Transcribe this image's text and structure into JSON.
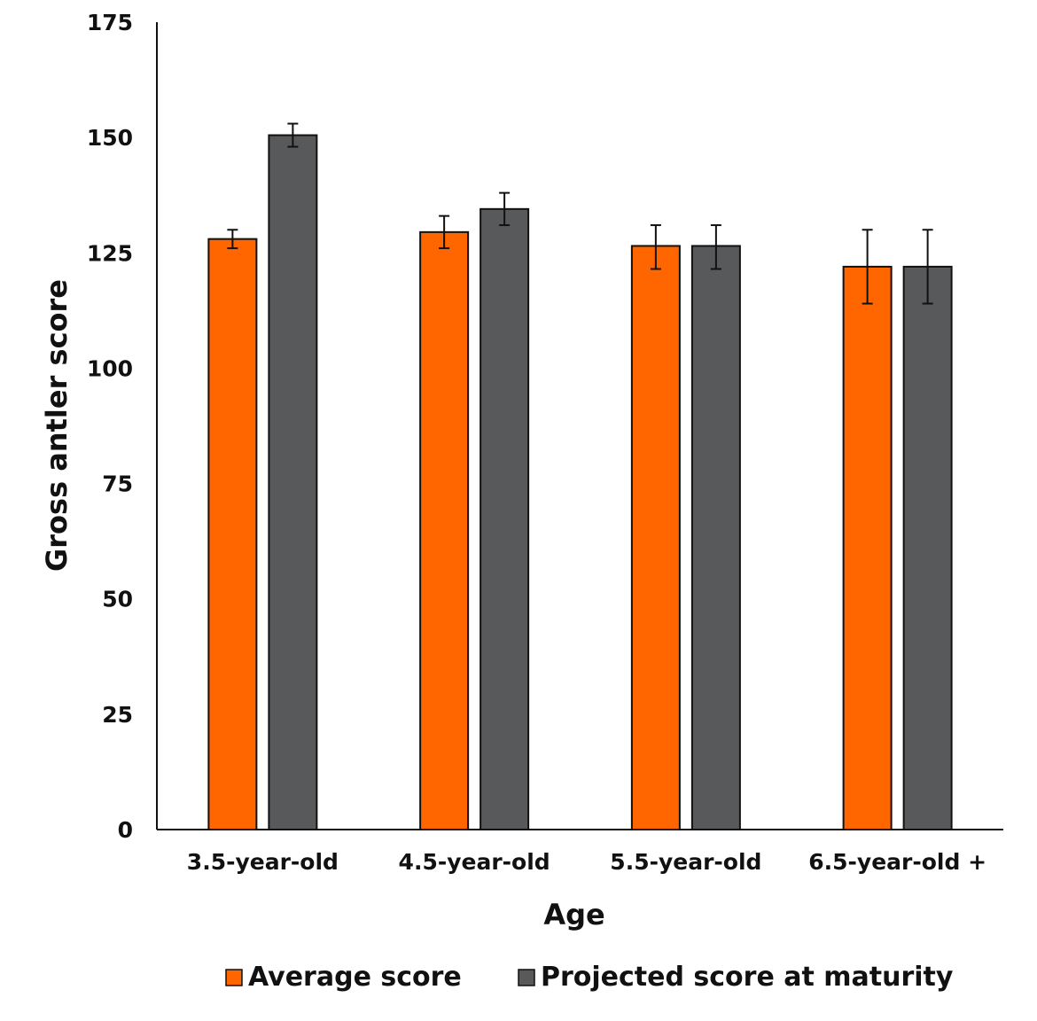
{
  "chart_data": {
    "type": "bar",
    "title": "",
    "xlabel": "Age",
    "ylabel": "Gross antler score",
    "categories": [
      "3.5-year-old",
      "4.5-year-old",
      "5.5-year-old",
      "6.5-year-old +"
    ],
    "ylim": [
      0,
      175
    ],
    "yticks": [
      0,
      25,
      50,
      75,
      100,
      125,
      150,
      175
    ],
    "grid": false,
    "legend_position": "bottom",
    "series": [
      {
        "name": "Average score",
        "color": "#ff6600",
        "values": [
          128,
          129.5,
          126.5,
          122
        ],
        "error_low": [
          126,
          126,
          121.5,
          114
        ],
        "error_high": [
          130,
          133,
          131,
          130
        ]
      },
      {
        "name": "Projected score at maturity",
        "color": "#58595b",
        "values": [
          150.5,
          134.5,
          126.5,
          122
        ],
        "error_low": [
          148,
          131,
          121.5,
          114
        ],
        "error_high": [
          153,
          138,
          131,
          130
        ]
      }
    ]
  }
}
